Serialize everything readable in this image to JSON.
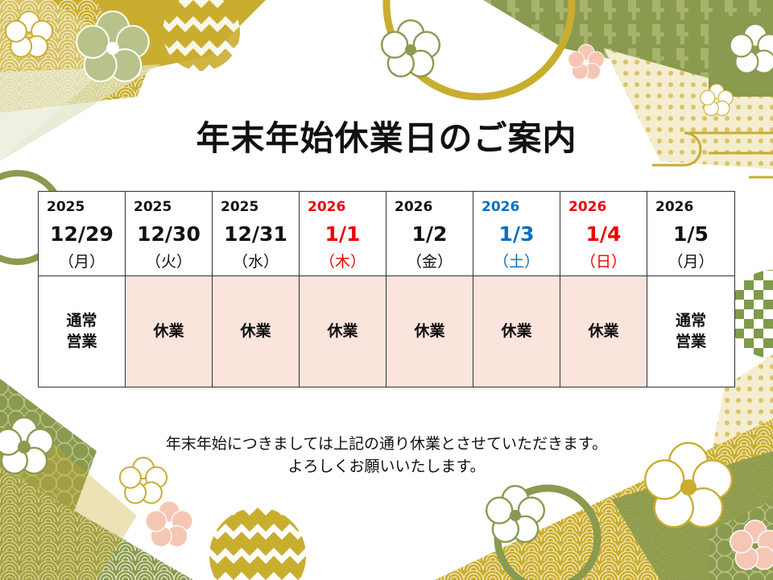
{
  "title": "年末年始休業日のご案内",
  "days": [
    {
      "year": "2025",
      "date": "12/29",
      "weekday": "（月）",
      "status": "通常\n営業",
      "color": "default",
      "closed": false
    },
    {
      "year": "2025",
      "date": "12/30",
      "weekday": "（火）",
      "status": "休業",
      "color": "default",
      "closed": true
    },
    {
      "year": "2025",
      "date": "12/31",
      "weekday": "（水）",
      "status": "休業",
      "color": "default",
      "closed": true
    },
    {
      "year": "2026",
      "date": "1/1",
      "weekday": "（木）",
      "status": "休業",
      "color": "#ee0000",
      "closed": true
    },
    {
      "year": "2026",
      "date": "1/2",
      "weekday": "（金）",
      "status": "休業",
      "color": "default",
      "closed": true
    },
    {
      "year": "2026",
      "date": "1/3",
      "weekday": "（土）",
      "status": "休業",
      "color": "#0070c0",
      "closed": true
    },
    {
      "year": "2026",
      "date": "1/4",
      "weekday": "（日）",
      "status": "休業",
      "color": "#ee0000",
      "closed": true
    },
    {
      "year": "2026",
      "date": "1/5",
      "weekday": "（月）",
      "status": "通常\n営業",
      "color": "default",
      "closed": false
    }
  ],
  "message": {
    "line1": "年末年始につきましては上記の通り休業とさせていただきます。",
    "line2": "よろしくお願いいたします。"
  },
  "colors": {
    "olive": "#8a9a4e",
    "gold": "#c9ad2f",
    "closed_fill": "#fbe4dc"
  }
}
